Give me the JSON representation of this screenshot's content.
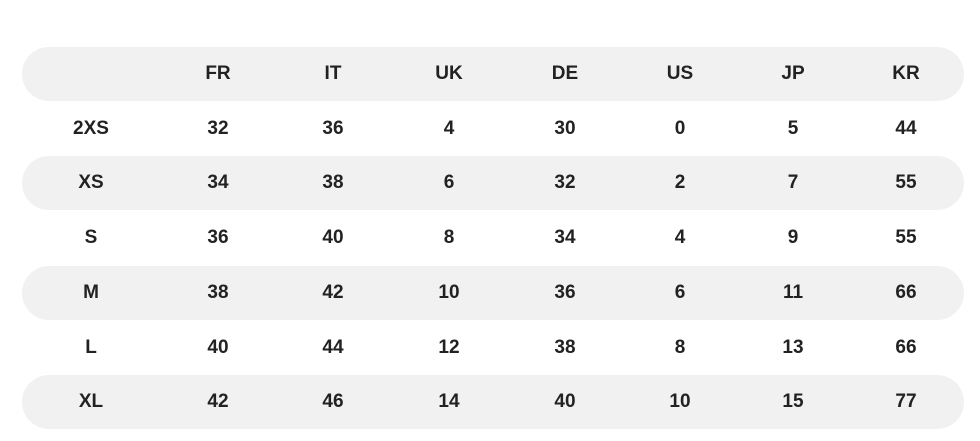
{
  "table": {
    "columns": [
      "FR",
      "IT",
      "UK",
      "DE",
      "US",
      "JP",
      "KR"
    ],
    "rows": [
      {
        "label": "2XS",
        "cells": [
          "32",
          "36",
          "4",
          "30",
          "0",
          "5",
          "44"
        ]
      },
      {
        "label": "XS",
        "cells": [
          "34",
          "38",
          "6",
          "32",
          "2",
          "7",
          "55"
        ]
      },
      {
        "label": "S",
        "cells": [
          "36",
          "40",
          "8",
          "34",
          "4",
          "9",
          "55"
        ]
      },
      {
        "label": "M",
        "cells": [
          "38",
          "42",
          "10",
          "36",
          "6",
          "11",
          "66"
        ]
      },
      {
        "label": "L",
        "cells": [
          "40",
          "44",
          "12",
          "38",
          "8",
          "13",
          "66"
        ]
      },
      {
        "label": "XL",
        "cells": [
          "42",
          "46",
          "14",
          "40",
          "10",
          "15",
          "77"
        ]
      }
    ]
  }
}
